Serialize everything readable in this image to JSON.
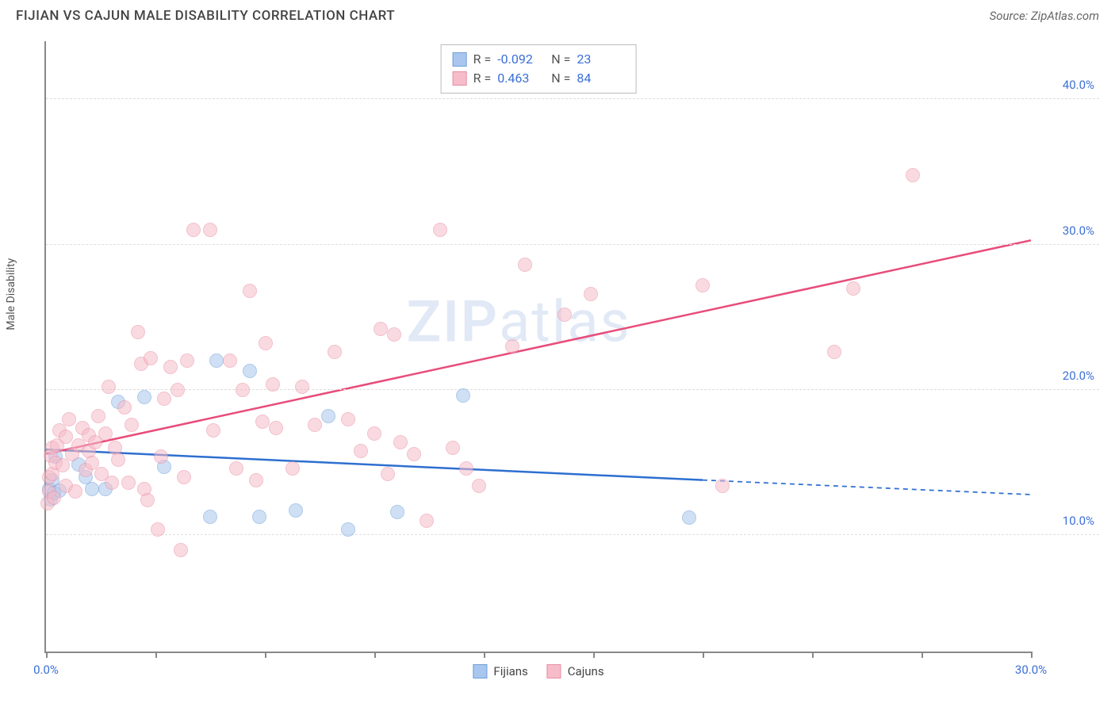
{
  "title": "FIJIAN VS CAJUN MALE DISABILITY CORRELATION CHART",
  "source_label": "Source: ZipAtlas.com",
  "ylabel": "Male Disability",
  "watermark_a": "ZIP",
  "watermark_b": "atlas",
  "chart": {
    "type": "scatter",
    "background_color": "#ffffff",
    "grid_color": "#dddddd",
    "axis_color": "#888888",
    "tick_label_color": "#3b6fd6",
    "xlim": [
      0,
      30
    ],
    "ylim": [
      2,
      44
    ],
    "x_tick_positions": [
      0,
      3.33,
      6.67,
      10,
      13.33,
      16.67,
      20,
      23.33,
      26.67,
      30
    ],
    "x_tick_labels": {
      "0": "0.0%",
      "30": "30.0%"
    },
    "y_gridlines": [
      10,
      20,
      30,
      40
    ],
    "y_tick_labels": {
      "10": "10.0%",
      "20": "20.0%",
      "30": "30.0%",
      "40": "40.0%"
    },
    "marker_radius": 9,
    "marker_opacity": 0.55,
    "series": [
      {
        "name": "Fijians",
        "color_fill": "#a9c7ee",
        "color_stroke": "#6f9fd8",
        "R": "-0.092",
        "N": "23",
        "trend": {
          "color": "#2e6fd0",
          "width": 2.5,
          "x1": 0,
          "y1": 15.9,
          "x2": 20,
          "y2": 13.8,
          "extend_to_x": 30,
          "extend_y": 12.8,
          "extend_style": "dashed"
        },
        "points": [
          [
            0.1,
            13.2
          ],
          [
            0.2,
            13.8
          ],
          [
            0.15,
            12.5
          ],
          [
            0.25,
            12.9
          ],
          [
            0.3,
            15.4
          ],
          [
            0.4,
            13.1
          ],
          [
            1.0,
            14.9
          ],
          [
            1.2,
            14.0
          ],
          [
            1.4,
            13.2
          ],
          [
            1.8,
            13.2
          ],
          [
            2.2,
            19.2
          ],
          [
            3.0,
            19.5
          ],
          [
            3.6,
            14.7
          ],
          [
            5.0,
            11.3
          ],
          [
            5.2,
            22.0
          ],
          [
            6.2,
            21.3
          ],
          [
            6.5,
            11.3
          ],
          [
            7.6,
            11.7
          ],
          [
            8.6,
            18.2
          ],
          [
            9.2,
            10.4
          ],
          [
            10.7,
            11.6
          ],
          [
            12.7,
            19.6
          ],
          [
            19.6,
            11.2
          ]
        ]
      },
      {
        "name": "Cajuns",
        "color_fill": "#f6bcc9",
        "color_stroke": "#e98fa6",
        "R": "0.463",
        "N": "84",
        "trend": {
          "color": "#e84c7a",
          "width": 2.5,
          "x1": 0,
          "y1": 15.6,
          "x2": 30,
          "y2": 30.3
        },
        "points": [
          [
            0.05,
            12.2
          ],
          [
            0.1,
            13.0
          ],
          [
            0.1,
            14.0
          ],
          [
            0.15,
            15.5
          ],
          [
            0.2,
            16.0
          ],
          [
            0.2,
            14.2
          ],
          [
            0.25,
            12.6
          ],
          [
            0.3,
            15.0
          ],
          [
            0.35,
            16.2
          ],
          [
            0.4,
            17.2
          ],
          [
            0.5,
            14.8
          ],
          [
            0.6,
            13.4
          ],
          [
            0.6,
            16.8
          ],
          [
            0.7,
            18.0
          ],
          [
            0.8,
            15.6
          ],
          [
            0.9,
            13.0
          ],
          [
            1.0,
            16.2
          ],
          [
            1.1,
            17.4
          ],
          [
            1.2,
            14.5
          ],
          [
            1.3,
            15.8
          ],
          [
            1.3,
            16.9
          ],
          [
            1.4,
            15.0
          ],
          [
            1.5,
            16.4
          ],
          [
            1.6,
            18.2
          ],
          [
            1.7,
            14.2
          ],
          [
            1.8,
            17.0
          ],
          [
            1.9,
            20.2
          ],
          [
            2.0,
            13.6
          ],
          [
            2.1,
            16.0
          ],
          [
            2.2,
            15.2
          ],
          [
            2.4,
            18.8
          ],
          [
            2.5,
            13.6
          ],
          [
            2.6,
            17.6
          ],
          [
            2.8,
            24.0
          ],
          [
            2.9,
            21.8
          ],
          [
            3.0,
            13.2
          ],
          [
            3.1,
            12.4
          ],
          [
            3.2,
            22.2
          ],
          [
            3.4,
            10.4
          ],
          [
            3.5,
            15.4
          ],
          [
            3.6,
            19.4
          ],
          [
            3.8,
            21.6
          ],
          [
            4.0,
            20.0
          ],
          [
            4.1,
            9.0
          ],
          [
            4.2,
            14.0
          ],
          [
            4.3,
            22.0
          ],
          [
            4.5,
            31.0
          ],
          [
            5.0,
            31.0
          ],
          [
            5.1,
            17.2
          ],
          [
            5.6,
            22.0
          ],
          [
            5.8,
            14.6
          ],
          [
            6.0,
            20.0
          ],
          [
            6.2,
            26.8
          ],
          [
            6.4,
            13.8
          ],
          [
            6.6,
            17.8
          ],
          [
            6.7,
            23.2
          ],
          [
            6.9,
            20.4
          ],
          [
            7.0,
            17.4
          ],
          [
            7.5,
            14.6
          ],
          [
            7.8,
            20.2
          ],
          [
            8.2,
            17.6
          ],
          [
            8.8,
            22.6
          ],
          [
            9.2,
            18.0
          ],
          [
            9.6,
            15.8
          ],
          [
            10.0,
            17.0
          ],
          [
            10.2,
            24.2
          ],
          [
            10.4,
            14.2
          ],
          [
            10.6,
            23.8
          ],
          [
            10.8,
            16.4
          ],
          [
            11.2,
            15.6
          ],
          [
            11.6,
            11.0
          ],
          [
            12.0,
            31.0
          ],
          [
            12.4,
            16.0
          ],
          [
            12.8,
            14.6
          ],
          [
            13.2,
            13.4
          ],
          [
            14.2,
            23.0
          ],
          [
            14.6,
            28.6
          ],
          [
            15.8,
            25.2
          ],
          [
            16.6,
            26.6
          ],
          [
            20.0,
            27.2
          ],
          [
            20.6,
            13.4
          ],
          [
            24.0,
            22.6
          ],
          [
            24.6,
            27.0
          ],
          [
            26.4,
            34.8
          ]
        ]
      }
    ]
  },
  "bottom_legend": [
    {
      "label": "Fijians",
      "fill": "#a9c7ee",
      "stroke": "#6f9fd8"
    },
    {
      "label": "Cajuns",
      "fill": "#f6bcc9",
      "stroke": "#e98fa6"
    }
  ]
}
